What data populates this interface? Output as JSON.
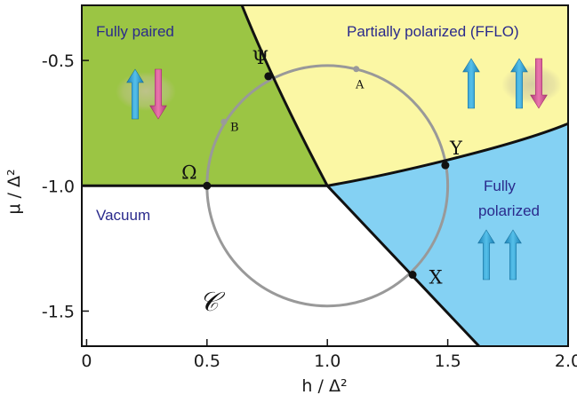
{
  "chart_data": {
    "type": "phase-diagram",
    "xlabel": "h / Δ²",
    "ylabel": "μ / Δ²",
    "xlim": [
      -0.02,
      2.0
    ],
    "ylim": [
      -1.64,
      -0.28
    ],
    "x_ticks": [
      "0",
      "0.5",
      "1.0",
      "1.5",
      "2.0"
    ],
    "x_tick_values": [
      0,
      0.5,
      1.0,
      1.5,
      2.0
    ],
    "y_ticks": [
      "-0.5",
      "-1.0",
      "-1.5"
    ],
    "y_tick_values": [
      -0.5,
      -1.0,
      -1.5
    ],
    "regions": [
      {
        "name": "Fully paired",
        "color": "#9bc544"
      },
      {
        "name": "Partially polarized (FFLO)",
        "color": "#fbf7a4"
      },
      {
        "name": "Fully polarized",
        "color": "#84d1f3"
      },
      {
        "name": "Vacuum",
        "color": "#ffffff"
      }
    ],
    "circle": {
      "label": "𝒞",
      "center": [
        1.0,
        -1.0
      ],
      "radius": 0.5,
      "color": "#999999"
    },
    "points": [
      {
        "label": "Ψ",
        "x": 0.755,
        "y": -0.563,
        "style": "big"
      },
      {
        "label": "Ω",
        "x": 0.5,
        "y": -1.0,
        "style": "big"
      },
      {
        "label": "Y",
        "x": 1.49,
        "y": -0.918,
        "style": "big"
      },
      {
        "label": "X",
        "x": 1.354,
        "y": -1.355,
        "style": "big"
      },
      {
        "label": "A",
        "x": 1.12,
        "y": -0.534,
        "style": "small"
      },
      {
        "label": "B",
        "x": 0.57,
        "y": -0.745,
        "style": "small"
      }
    ]
  },
  "colors": {
    "spin_up": "#2f9fcf",
    "spin_down": "#d04f8f",
    "boundary": "#111111"
  },
  "icons": [
    "pair-icon",
    "ffl0-icon",
    "polarized-icon"
  ]
}
